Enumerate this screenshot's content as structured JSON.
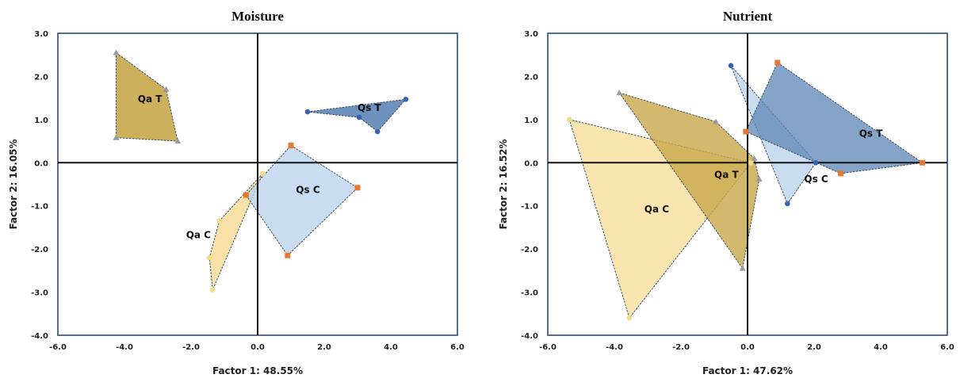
{
  "colors": {
    "qa_t_fill": "#c8a74a",
    "qa_c_fill": "#f6dc96",
    "qs_t_fill": "#5d86b6",
    "qs_c_fill": "#bcd3ec",
    "frame": "#2c4a7c",
    "edge": "#2b3d57",
    "marker_orange": "#e8782f",
    "marker_blue": "#3a62b0",
    "marker_gray": "#9a9a9a",
    "marker_yellow": "#f3d98a"
  },
  "chart_data": [
    {
      "type": "scatter",
      "title": "Moisture",
      "xlabel": "Factor 1: 48.55%",
      "ylabel": "Factor 2: 16.05%",
      "xlim": [
        -6,
        6
      ],
      "ylim": [
        -4,
        3
      ],
      "xticks": [
        "-6.0",
        "-4.0",
        "-2.0",
        "0.0",
        "2.0",
        "4.0",
        "6.0"
      ],
      "yticks": [
        "3.0",
        "2.0",
        "1.0",
        "0.0",
        "-1.0",
        "-2.0",
        "-3.0",
        "-4.0"
      ],
      "grid": false,
      "groups": [
        {
          "name": "Qa T",
          "fill": "#c8a74a",
          "opacity": 0.9,
          "marker": "gray",
          "polygon": [
            [
              -4.25,
              2.55
            ],
            [
              -2.75,
              1.7
            ],
            [
              -2.4,
              0.5
            ],
            [
              -4.25,
              0.58
            ]
          ],
          "points": [
            [
              -4.25,
              2.55
            ],
            [
              -2.75,
              1.7
            ],
            [
              -2.4,
              0.5
            ],
            [
              -4.25,
              0.58
            ]
          ],
          "label_at": [
            -3.6,
            1.4
          ]
        },
        {
          "name": "Qa C",
          "fill": "#f6dc96",
          "opacity": 0.85,
          "marker": "yellow",
          "polygon": [
            [
              0.15,
              -0.25
            ],
            [
              -1.35,
              -2.95
            ],
            [
              -1.45,
              -2.2
            ],
            [
              -1.15,
              -1.35
            ]
          ],
          "points": [
            [
              0.15,
              -0.25
            ],
            [
              -1.35,
              -2.95
            ],
            [
              -1.45,
              -2.2
            ],
            [
              -1.15,
              -1.35
            ]
          ],
          "label_at": [
            -2.15,
            -1.75
          ]
        },
        {
          "name": "Qs C",
          "fill": "#bcd3ec",
          "opacity": 0.8,
          "marker": "orange",
          "polygon": [
            [
              1.0,
              0.4
            ],
            [
              3.0,
              -0.58
            ],
            [
              0.9,
              -2.15
            ],
            [
              -0.35,
              -0.75
            ]
          ],
          "points": [
            [
              1.0,
              0.4
            ],
            [
              3.0,
              -0.58
            ],
            [
              0.9,
              -2.15
            ],
            [
              -0.35,
              -0.75
            ]
          ],
          "label_at": [
            1.15,
            -0.7
          ]
        },
        {
          "name": "Qs T",
          "fill": "#5d86b6",
          "opacity": 0.9,
          "marker": "blue",
          "polygon": [
            [
              1.5,
              1.18
            ],
            [
              4.45,
              1.47
            ],
            [
              3.6,
              0.72
            ],
            [
              3.05,
              1.05
            ]
          ],
          "points": [
            [
              1.5,
              1.18
            ],
            [
              4.45,
              1.47
            ],
            [
              3.6,
              0.72
            ],
            [
              3.05,
              1.05
            ]
          ],
          "label_at": [
            3.0,
            1.2
          ]
        }
      ]
    },
    {
      "type": "scatter",
      "title": "Nutrient",
      "xlabel": "Factor 1: 47.62%",
      "ylabel": "Factor 2: 16.52%",
      "xlim": [
        -6,
        6
      ],
      "ylim": [
        -4,
        3
      ],
      "xticks": [
        "-6.0",
        "-4.0",
        "-2.0",
        "0.0",
        "2.0",
        "4.0",
        "6.0"
      ],
      "yticks": [
        "3.0",
        "2.0",
        "1.0",
        "0.0",
        "-1.0",
        "-2.0",
        "-3.0",
        "-4.0"
      ],
      "grid": false,
      "groups": [
        {
          "name": "Qa C",
          "fill": "#f6dc96",
          "opacity": 0.75,
          "marker": "yellow",
          "polygon": [
            [
              -5.35,
              1.0
            ],
            [
              0.1,
              0.0
            ],
            [
              -3.55,
              -3.6
            ]
          ],
          "points": [
            [
              -5.35,
              1.0
            ],
            [
              0.1,
              0.0
            ],
            [
              -3.55,
              -3.6
            ]
          ],
          "label_at": [
            -3.1,
            -1.15
          ]
        },
        {
          "name": "Qa T",
          "fill": "#c8a74a",
          "opacity": 0.8,
          "marker": "gray",
          "polygon": [
            [
              -3.85,
              1.62
            ],
            [
              -0.95,
              0.95
            ],
            [
              0.2,
              0.1
            ],
            [
              0.35,
              -0.38
            ],
            [
              -0.15,
              -2.45
            ]
          ],
          "points": [
            [
              -3.85,
              1.62
            ],
            [
              -0.95,
              0.95
            ],
            [
              0.2,
              0.1
            ],
            [
              0.35,
              -0.38
            ],
            [
              -0.15,
              -2.45
            ]
          ],
          "label_at": [
            -1.0,
            -0.35
          ]
        },
        {
          "name": "Qs C",
          "fill": "#bcd3ec",
          "opacity": 0.8,
          "marker": "blue",
          "polygon": [
            [
              -0.5,
              2.25
            ],
            [
              2.05,
              0.0
            ],
            [
              1.2,
              -0.95
            ]
          ],
          "points": [
            [
              -0.5,
              2.25
            ],
            [
              2.05,
              0.0
            ],
            [
              1.2,
              -0.95
            ]
          ],
          "label_at": [
            1.7,
            -0.45
          ]
        },
        {
          "name": "Qs T",
          "fill": "#5d86b6",
          "opacity": 0.75,
          "marker": "orange",
          "polygon": [
            [
              0.9,
              2.32
            ],
            [
              5.25,
              0.0
            ],
            [
              2.8,
              -0.25
            ],
            [
              -0.05,
              0.72
            ]
          ],
          "points": [
            [
              0.9,
              2.32
            ],
            [
              5.25,
              0.0
            ],
            [
              2.8,
              -0.25
            ],
            [
              -0.05,
              0.72
            ]
          ],
          "label_at": [
            3.35,
            0.6
          ]
        }
      ]
    }
  ]
}
